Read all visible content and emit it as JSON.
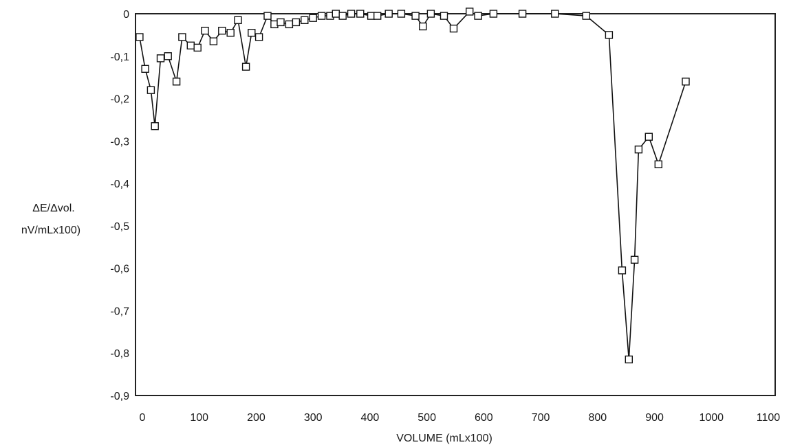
{
  "chart_data": {
    "type": "line",
    "title": "",
    "xlabel": "VOLUME (mLx100)",
    "ylabel_line1": "ΔE/Δvol.",
    "ylabel_line2": "nV/mLx100)",
    "xlim": [
      0,
      1100
    ],
    "ylim": [
      -0.9,
      0
    ],
    "x_ticks": [
      0,
      100,
      200,
      300,
      400,
      500,
      600,
      700,
      800,
      900,
      1000,
      1100
    ],
    "y_ticks": [
      0,
      -0.1,
      -0.2,
      -0.3,
      -0.4,
      -0.5,
      -0.6,
      -0.7,
      -0.8,
      -0.9
    ],
    "x_tick_labels": [
      "0",
      "100",
      "200",
      "300",
      "400",
      "500",
      "600",
      "700",
      "800",
      "900",
      "1000",
      "1100"
    ],
    "y_tick_labels": [
      "0",
      "-0,1",
      "-0,2",
      "-0,3",
      "-0,4",
      "-0,5",
      "-0,6",
      "-0,7",
      "-0,8",
      "-0,9"
    ],
    "grid": false,
    "marker": "square",
    "line_color": "#111111",
    "series": [
      {
        "x": [
          -5,
          5,
          15,
          22,
          32,
          45,
          60,
          70,
          85,
          97,
          110,
          125,
          140,
          155,
          168,
          182,
          192,
          205,
          220,
          232,
          243,
          258,
          270,
          285,
          300,
          315,
          330,
          340,
          352,
          367,
          383,
          402,
          413,
          433,
          455,
          480,
          493,
          507,
          530,
          547,
          575,
          590,
          617,
          668,
          725,
          780,
          820,
          843,
          855,
          865,
          872,
          890,
          907,
          955
        ],
        "y": [
          -0.055,
          -0.13,
          -0.18,
          -0.265,
          -0.105,
          -0.1,
          -0.16,
          -0.055,
          -0.075,
          -0.08,
          -0.04,
          -0.065,
          -0.04,
          -0.045,
          -0.015,
          -0.125,
          -0.045,
          -0.055,
          -0.005,
          -0.025,
          -0.02,
          -0.025,
          -0.02,
          -0.015,
          -0.01,
          -0.005,
          -0.005,
          0.0,
          -0.005,
          0.0,
          0.0,
          -0.005,
          -0.005,
          0.0,
          0.0,
          -0.005,
          -0.03,
          0.0,
          -0.005,
          -0.035,
          0.005,
          -0.005,
          0.0,
          0.0,
          0.0,
          -0.005,
          -0.05,
          -0.605,
          -0.815,
          -0.58,
          -0.32,
          -0.29,
          -0.355,
          -0.16
        ]
      }
    ]
  }
}
